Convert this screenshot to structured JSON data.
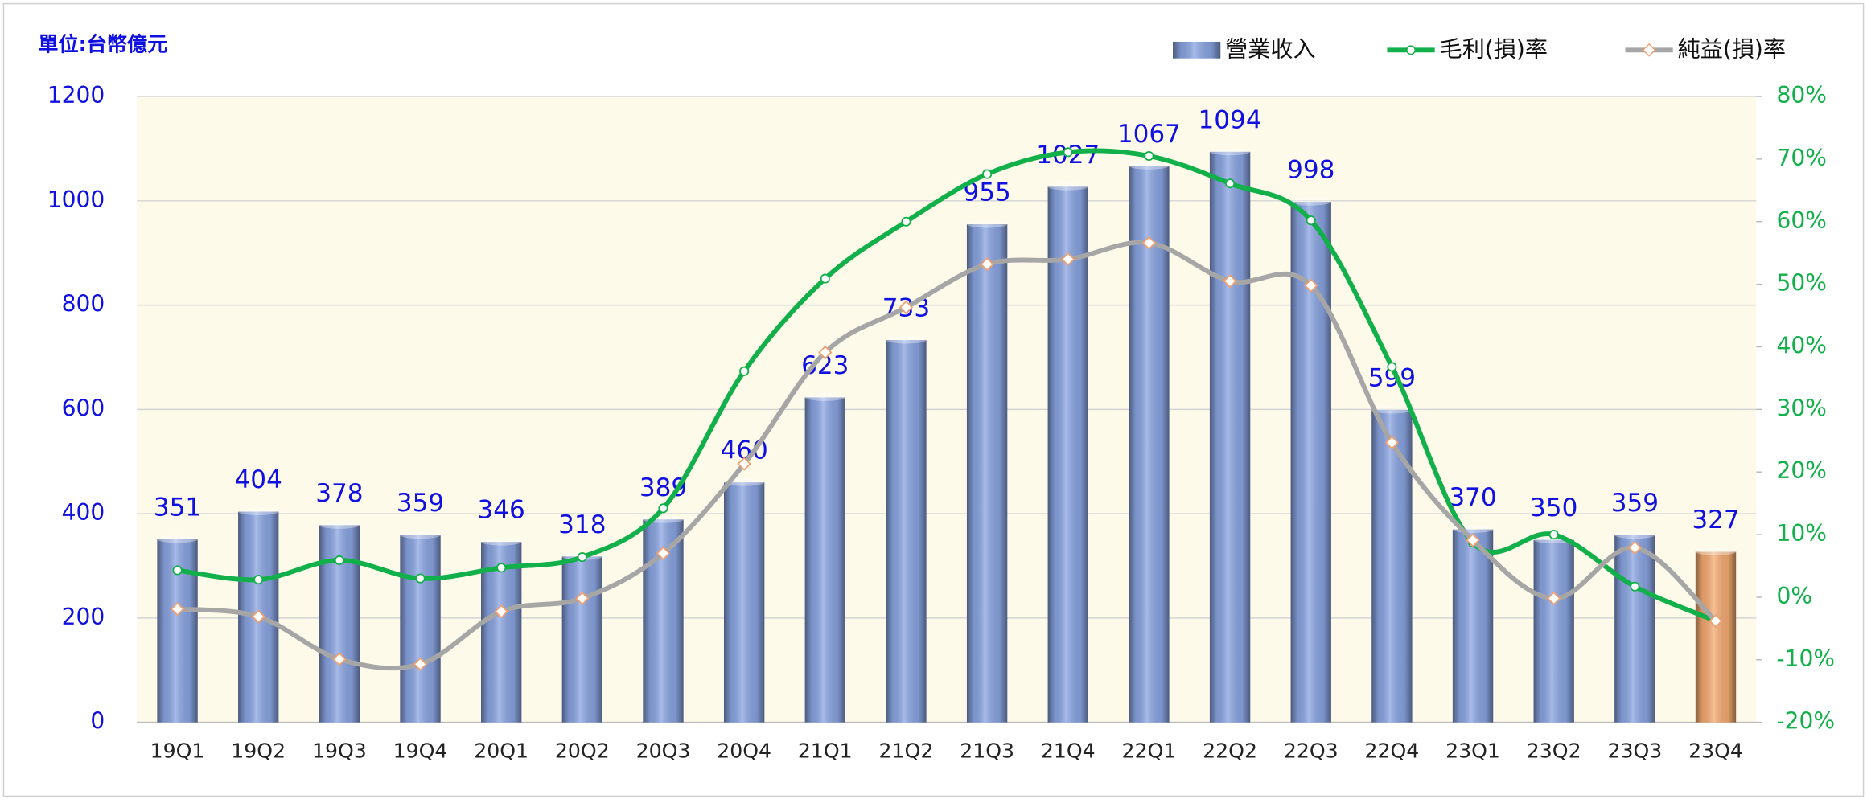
{
  "chart_data": {
    "type": "bar_line",
    "unit_label": "單位:台幣億元",
    "categories": [
      "19Q1",
      "19Q2",
      "19Q3",
      "19Q4",
      "20Q1",
      "20Q2",
      "20Q3",
      "20Q4",
      "21Q1",
      "21Q2",
      "21Q3",
      "21Q4",
      "22Q1",
      "22Q2",
      "22Q3",
      "22Q4",
      "23Q1",
      "23Q2",
      "23Q3",
      "23Q4"
    ],
    "series": [
      {
        "name": "營業收入",
        "type": "bar",
        "color": "#8aa5e3",
        "label_color": "#1010e0",
        "point_colors": [
          "#8aa5e3",
          "#8aa5e3",
          "#8aa5e3",
          "#8aa5e3",
          "#8aa5e3",
          "#8aa5e3",
          "#8aa5e3",
          "#8aa5e3",
          "#8aa5e3",
          "#8aa5e3",
          "#8aa5e3",
          "#8aa5e3",
          "#8aa5e3",
          "#8aa5e3",
          "#8aa5e3",
          "#8aa5e3",
          "#8aa5e3",
          "#8aa5e3",
          "#8aa5e3",
          "#f6ab72"
        ],
        "values": [
          351,
          404,
          378,
          359,
          346,
          318,
          389,
          460,
          623,
          733,
          955,
          1027,
          1067,
          1094,
          998,
          599,
          370,
          350,
          359,
          327
        ]
      },
      {
        "name": "毛利(損)率",
        "type": "line",
        "axis": "y2",
        "color": "#12b04a",
        "marker": "circle",
        "values": [
          4.3,
          2.8,
          5.9,
          3.0,
          4.7,
          6.4,
          14.2,
          36.1,
          50.9,
          60.0,
          67.6,
          71.1,
          70.5,
          66.1,
          60.2,
          36.8,
          8.7,
          10.0,
          1.7,
          -3.8
        ]
      },
      {
        "name": "純益(損)率",
        "type": "line",
        "axis": "y2",
        "color": "#a6a6a6",
        "marker_color": "#f0a070",
        "marker": "diamond",
        "values": [
          -1.9,
          -3.1,
          -9.9,
          -10.7,
          -2.3,
          -0.2,
          7.0,
          21.3,
          39.1,
          46.3,
          53.2,
          54.0,
          56.6,
          50.5,
          49.8,
          24.7,
          9.1,
          -0.2,
          7.9,
          -3.8
        ]
      }
    ],
    "ylim": [
      0,
      1200
    ],
    "yticks": [
      0,
      200,
      400,
      600,
      800,
      1000,
      1200
    ],
    "ycolor": "#1010e0",
    "y2lim": [
      -20,
      80
    ],
    "y2color": "#12b04a",
    "y2ticks": [
      {
        "value": -20,
        "label": "-20%"
      },
      {
        "value": -10,
        "label": "-10%"
      },
      {
        "value": 0,
        "label": "0%"
      },
      {
        "value": 10,
        "label": "10%"
      },
      {
        "value": 20,
        "label": "20%"
      },
      {
        "value": 30,
        "label": "30%"
      },
      {
        "value": 40,
        "label": "40%"
      },
      {
        "value": 50,
        "label": "50%"
      },
      {
        "value": 60,
        "label": "60%"
      },
      {
        "value": 70,
        "label": "70%"
      },
      {
        "value": 80,
        "label": "80%"
      }
    ],
    "grid": true,
    "plot_background": "#fefaea",
    "legend": "top-right"
  }
}
